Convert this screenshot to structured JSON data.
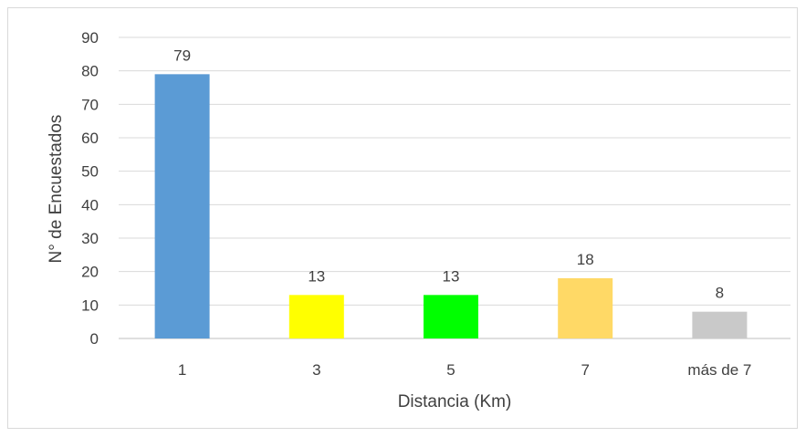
{
  "chart_data": {
    "type": "bar",
    "categories": [
      "1",
      "3",
      "5",
      "7",
      "más de 7"
    ],
    "values": [
      79,
      13,
      13,
      18,
      8
    ],
    "colors": [
      "#5b9bd5",
      "#ffff00",
      "#00ff00",
      "#ffd966",
      "#c9c9c9"
    ],
    "data_labels": [
      "79",
      "13",
      "13",
      "18",
      "8"
    ],
    "title": "",
    "xlabel": "Distancia (Km)",
    "ylabel": "N° de Encuestados",
    "ylim": [
      0,
      90
    ],
    "yticks": [
      "0",
      "10",
      "20",
      "30",
      "40",
      "50",
      "60",
      "70",
      "80",
      "90"
    ],
    "grid": true,
    "legend": "none"
  }
}
